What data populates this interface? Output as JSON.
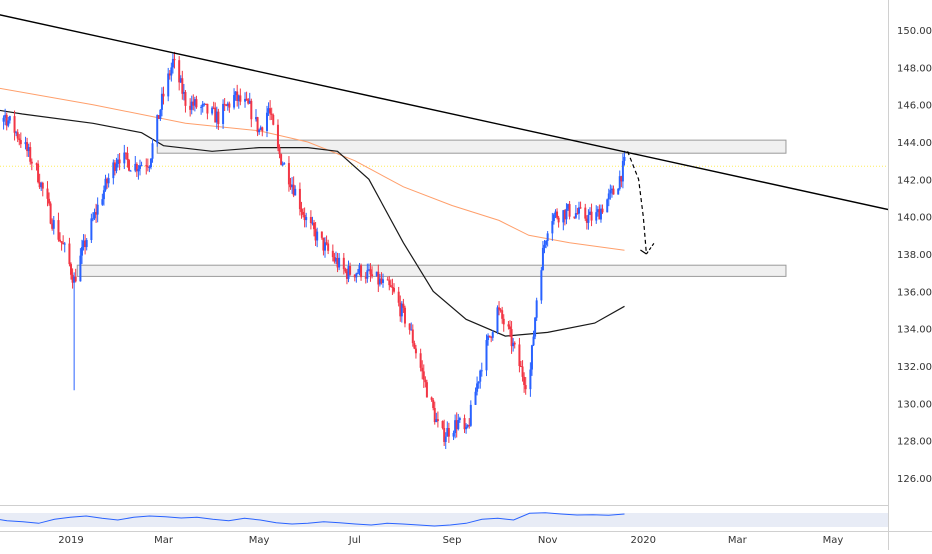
{
  "colors": {
    "background": "#ffffff",
    "up_candle": "#2962ff",
    "down_candle": "#f23645",
    "trendline": "#000000",
    "ma_fast": "#ff9f6b",
    "ma_slow": "#1a1a1a",
    "zone_fill": "#f0f0f0",
    "zone_stroke": "#9a9a9a",
    "rsi_line": "#2962ff",
    "current_price_line": "#ffee58",
    "axis_text": "#333333"
  },
  "chart_data": {
    "type": "candlestick",
    "y_axis": {
      "range": [
        124.6,
        151.2
      ],
      "tick_labels": [
        "126.000",
        "128.000",
        "130.000",
        "132.000",
        "134.000",
        "136.000",
        "138.000",
        "140.000",
        "142.000",
        "144.000",
        "146.000",
        "148.000",
        "150.000"
      ],
      "tick_values": [
        126,
        128,
        130,
        132,
        134,
        136,
        138,
        140,
        142,
        144,
        146,
        148,
        150
      ],
      "position": "right"
    },
    "x_axis": {
      "tick_labels": [
        "2019",
        "Mar",
        "May",
        "Jul",
        "Sep",
        "Nov",
        "2020",
        "Mar",
        "May"
      ],
      "tick_dates": [
        "2019-01-01",
        "2019-03-01",
        "2019-05-01",
        "2019-07-01",
        "2019-09-01",
        "2019-11-01",
        "2020-01-01",
        "2020-03-01",
        "2020-05-01"
      ]
    },
    "candle_path": [
      [
        "2018-11-01",
        147.4
      ],
      [
        "2018-11-10",
        145.0
      ],
      [
        "2018-11-20",
        145.4
      ],
      [
        "2018-12-01",
        144.0
      ],
      [
        "2018-12-10",
        142.5
      ],
      [
        "2018-12-20",
        139.8
      ],
      [
        "2018-12-28",
        138.2
      ],
      [
        "2019-01-03",
        136.6
      ],
      [
        "2019-01-10",
        138.6
      ],
      [
        "2019-01-20",
        141.0
      ],
      [
        "2019-01-31",
        143.3
      ],
      [
        "2019-02-10",
        142.7
      ],
      [
        "2019-02-20",
        143.0
      ],
      [
        "2019-02-28",
        146.2
      ],
      [
        "2019-03-07",
        148.3
      ],
      [
        "2019-03-15",
        146.2
      ],
      [
        "2019-03-25",
        145.8
      ],
      [
        "2019-04-05",
        145.3
      ],
      [
        "2019-04-15",
        146.4
      ],
      [
        "2019-04-25",
        145.8
      ],
      [
        "2019-05-01",
        144.6
      ],
      [
        "2019-05-07",
        145.8
      ],
      [
        "2019-05-13",
        143.5
      ],
      [
        "2019-05-22",
        141.8
      ],
      [
        "2019-06-01",
        139.6
      ],
      [
        "2019-06-15",
        138.0
      ],
      [
        "2019-06-25",
        137.0
      ],
      [
        "2019-07-05",
        137.1
      ],
      [
        "2019-07-15",
        136.6
      ],
      [
        "2019-07-25",
        136.0
      ],
      [
        "2019-08-05",
        134.0
      ],
      [
        "2019-08-15",
        131.0
      ],
      [
        "2019-08-25",
        128.2
      ],
      [
        "2019-09-05",
        129.0
      ],
      [
        "2019-09-10",
        128.3
      ],
      [
        "2019-09-20",
        132.2
      ],
      [
        "2019-09-30",
        135.0
      ],
      [
        "2019-10-07",
        133.8
      ],
      [
        "2019-10-15",
        131.8
      ],
      [
        "2019-10-20",
        130.8
      ],
      [
        "2019-10-26",
        136.6
      ],
      [
        "2019-11-02",
        140.0
      ],
      [
        "2019-11-15",
        140.3
      ],
      [
        "2019-11-25",
        140.0
      ],
      [
        "2019-12-01",
        139.9
      ],
      [
        "2019-12-08",
        140.8
      ],
      [
        "2019-12-14",
        141.4
      ],
      [
        "2019-12-20",
        142.8
      ]
    ],
    "candle_extreme_wick": {
      "date": "2019-01-03",
      "low": 130.7
    },
    "moving_averages": [
      {
        "color_key": "ma_fast",
        "points": [
          [
            "2018-11-01",
            147.1
          ],
          [
            "2019-01-15",
            146.0
          ],
          [
            "2019-03-15",
            145.0
          ],
          [
            "2019-05-01",
            144.6
          ],
          [
            "2019-06-01",
            144.0
          ],
          [
            "2019-07-01",
            143.0
          ],
          [
            "2019-08-01",
            141.6
          ],
          [
            "2019-09-01",
            140.6
          ],
          [
            "2019-10-01",
            139.8
          ],
          [
            "2019-10-20",
            139.0
          ],
          [
            "2019-11-15",
            138.6
          ],
          [
            "2019-12-20",
            138.2
          ]
        ]
      },
      {
        "color_key": "ma_slow",
        "points": [
          [
            "2018-11-01",
            145.9
          ],
          [
            "2018-12-01",
            145.5
          ],
          [
            "2019-01-15",
            145.0
          ],
          [
            "2019-02-15",
            144.5
          ],
          [
            "2019-03-01",
            143.8
          ],
          [
            "2019-04-01",
            143.5
          ],
          [
            "2019-05-01",
            143.7
          ],
          [
            "2019-06-01",
            143.7
          ],
          [
            "2019-06-20",
            143.5
          ],
          [
            "2019-07-10",
            142.0
          ],
          [
            "2019-08-01",
            138.6
          ],
          [
            "2019-08-20",
            136.0
          ],
          [
            "2019-09-10",
            134.5
          ],
          [
            "2019-10-05",
            133.6
          ],
          [
            "2019-11-01",
            133.8
          ],
          [
            "2019-12-01",
            134.3
          ],
          [
            "2019-12-20",
            135.2
          ]
        ]
      }
    ],
    "trendline": [
      [
        "2018-11-01",
        151.1
      ],
      [
        "2020-06-15",
        140.2
      ]
    ],
    "zones": [
      {
        "from": "2019-02-25",
        "to": "2020-04-01",
        "low": 143.4,
        "high": 144.1
      },
      {
        "from": "2019-01-05",
        "to": "2020-04-01",
        "low": 136.8,
        "high": 137.4
      }
    ],
    "projection_arrow": [
      [
        "2019-12-22",
        143.5
      ],
      [
        "2019-12-29",
        142.0
      ],
      [
        "2020-01-01",
        140.0
      ],
      [
        "2020-01-03",
        138.0
      ],
      [
        "2020-01-08",
        138.6
      ]
    ],
    "current_price": 142.7,
    "rsi_strip": {
      "values": [
        60,
        55,
        48,
        45,
        40,
        52,
        58,
        62,
        55,
        50,
        58,
        62,
        60,
        56,
        58,
        52,
        48,
        55,
        50,
        42,
        38,
        40,
        45,
        42,
        38,
        35,
        40,
        38,
        35,
        32,
        35,
        40,
        52,
        55,
        50,
        70,
        72,
        68,
        65,
        66,
        64,
        68
      ]
    }
  }
}
